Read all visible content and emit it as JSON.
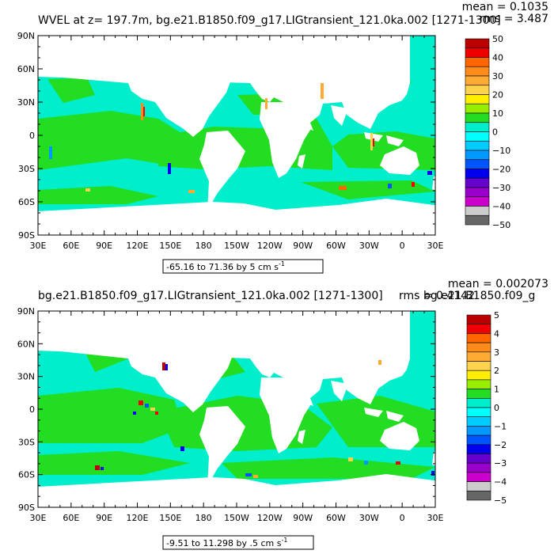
{
  "panels": [
    {
      "title": "WVEL at z= 197.7m, bg.e21.B1850.f09_g17.LIGtransient_121.0ka.002 [1271-1300]",
      "mean_label": "mean = 0.1035",
      "rms_label": "rms = 3.487",
      "range_label": "-65.16 to 71.36 by 5 cm s",
      "range_sup": "-1",
      "colorbar_labels": [
        "50",
        "40",
        "30",
        "20",
        "10",
        "0",
        "−10",
        "−20",
        "−30",
        "−40",
        "−50"
      ]
    },
    {
      "title": "bg.e21.B1850.f09_g17.LIGtransient_121.0ka.002 [1271-1300]",
      "mean_label": "mean = 0.002073",
      "rms_label": "rms = 0.4142",
      "overlap_text": "bg.e21.B1850.f09_g",
      "range_label": "-9.51 to 11.298 by .5 cm s",
      "range_sup": "-1",
      "colorbar_labels": [
        "5",
        "4",
        "3",
        "2",
        "1",
        "0",
        "−1",
        "−2",
        "−3",
        "−4",
        "−5"
      ]
    }
  ],
  "lat_labels": [
    "90N",
    "60N",
    "30N",
    "0",
    "30S",
    "60S",
    "90S"
  ],
  "lon_labels": [
    "30E",
    "60E",
    "90E",
    "120E",
    "150E",
    "180",
    "150W",
    "120W",
    "90W",
    "60W",
    "30W",
    "0",
    "30E"
  ],
  "colors": {
    "ocean_positive": "#22dd22",
    "ocean_negative": "#00eecc",
    "land": "#ffffff",
    "colorbar": [
      "#bb0000",
      "#ee0000",
      "#ff6600",
      "#ff8c1a",
      "#ffaa33",
      "#ffd24d",
      "#ffee00",
      "#99ee00",
      "#22dd22",
      "#00eecc",
      "#00ffff",
      "#00ccff",
      "#0099ff",
      "#0055ff",
      "#0000ee",
      "#6600cc",
      "#9900cc",
      "#cc00cc",
      "#cccccc",
      "#666666"
    ]
  }
}
